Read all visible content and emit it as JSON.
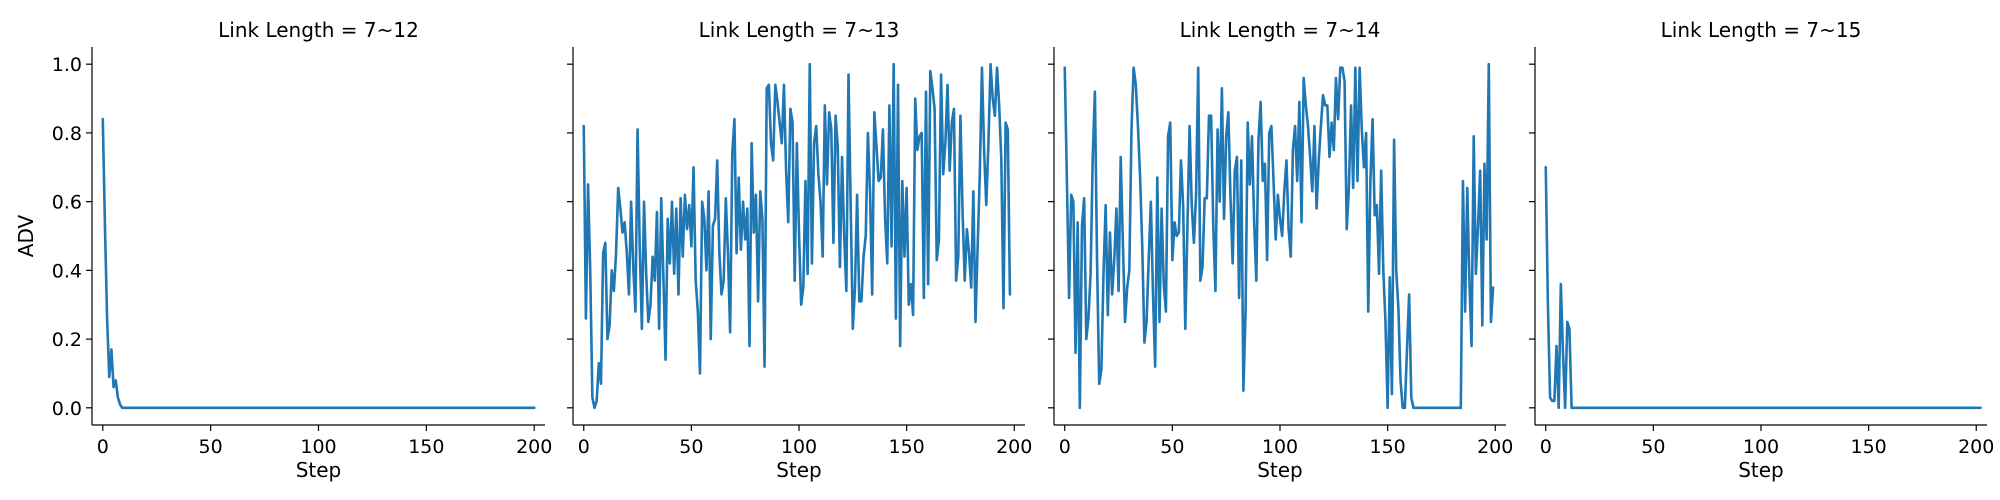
{
  "figure": {
    "line_color": "#1f77b4",
    "shared_ylabel": "ADV"
  },
  "chart_data": [
    {
      "type": "line",
      "title": "Link Length = 7~12",
      "xlabel": "Step",
      "ylabel": "ADV",
      "xlim": [
        -5,
        205
      ],
      "ylim": [
        -0.05,
        1.05
      ],
      "xticks": [
        0,
        50,
        100,
        150,
        200
      ],
      "yticks": [
        0.0,
        0.2,
        0.4,
        0.6,
        0.8,
        1.0
      ],
      "ytick_labels": [
        "0.0",
        "0.2",
        "0.4",
        "0.6",
        "0.8",
        "1.0"
      ],
      "grid": false,
      "series": [
        {
          "values": [
            0.84,
            0.53,
            0.26,
            0.09,
            0.17,
            0.06,
            0.08,
            0.03,
            0.01,
            0.0,
            0.0,
            0.0,
            0.0,
            0.0,
            0.0,
            0.0,
            0.0,
            0.0,
            0.0,
            0.0,
            0.0,
            0.0,
            0.0,
            0.0,
            0.0,
            0.0,
            0.0,
            0.0,
            0.0,
            0.0,
            0.0,
            0.0,
            0.0,
            0.0,
            0.0,
            0.0,
            0.0,
            0.0,
            0.0,
            0.0,
            0.0,
            0.0,
            0.0,
            0.0,
            0.0,
            0.0,
            0.0,
            0.0,
            0.0,
            0.0,
            0.0,
            0.0,
            0.0,
            0.0,
            0.0,
            0.0,
            0.0,
            0.0,
            0.0,
            0.0,
            0.0,
            0.0,
            0.0,
            0.0,
            0.0,
            0.0,
            0.0,
            0.0,
            0.0,
            0.0,
            0.0,
            0.0,
            0.0,
            0.0,
            0.0,
            0.0,
            0.0,
            0.0,
            0.0,
            0.0,
            0.0,
            0.0,
            0.0,
            0.0,
            0.0,
            0.0,
            0.0,
            0.0,
            0.0,
            0.0,
            0.0,
            0.0,
            0.0,
            0.0,
            0.0,
            0.0,
            0.0,
            0.0,
            0.0,
            0.0,
            0.0,
            0.0,
            0.0,
            0.0,
            0.0,
            0.0,
            0.0,
            0.0,
            0.0,
            0.0,
            0.0,
            0.0,
            0.0,
            0.0,
            0.0,
            0.0,
            0.0,
            0.0,
            0.0,
            0.0,
            0.0,
            0.0,
            0.0,
            0.0,
            0.0,
            0.0,
            0.0,
            0.0,
            0.0,
            0.0,
            0.0,
            0.0,
            0.0,
            0.0,
            0.0,
            0.0,
            0.0,
            0.0,
            0.0,
            0.0,
            0.0,
            0.0,
            0.0,
            0.0,
            0.0,
            0.0,
            0.0,
            0.0,
            0.0,
            0.0,
            0.0,
            0.0,
            0.0,
            0.0,
            0.0,
            0.0,
            0.0,
            0.0,
            0.0,
            0.0,
            0.0,
            0.0,
            0.0,
            0.0,
            0.0,
            0.0,
            0.0,
            0.0,
            0.0,
            0.0,
            0.0,
            0.0,
            0.0,
            0.0,
            0.0,
            0.0,
            0.0,
            0.0,
            0.0,
            0.0,
            0.0,
            0.0,
            0.0,
            0.0,
            0.0,
            0.0,
            0.0,
            0.0,
            0.0,
            0.0,
            0.0,
            0.0,
            0.0,
            0.0,
            0.0,
            0.0,
            0.0,
            0.0,
            0.0,
            0.0,
            0.0
          ]
        }
      ]
    },
    {
      "type": "line",
      "title": "Link Length = 7~13",
      "xlabel": "Step",
      "ylabel": "",
      "xlim": [
        -5,
        205
      ],
      "ylim": [
        -0.05,
        1.05
      ],
      "xticks": [
        0,
        50,
        100,
        150,
        200
      ],
      "yticks": [
        0.0,
        0.2,
        0.4,
        0.6,
        0.8,
        1.0
      ],
      "ytick_labels": [],
      "grid": false,
      "series": [
        {
          "values": [
            0.82,
            0.26,
            0.65,
            0.4,
            0.03,
            0.0,
            0.02,
            0.13,
            0.07,
            0.45,
            0.48,
            0.2,
            0.24,
            0.4,
            0.34,
            0.45,
            0.64,
            0.58,
            0.51,
            0.54,
            0.45,
            0.33,
            0.6,
            0.41,
            0.28,
            0.81,
            0.47,
            0.23,
            0.6,
            0.39,
            0.25,
            0.3,
            0.44,
            0.37,
            0.57,
            0.23,
            0.61,
            0.38,
            0.14,
            0.55,
            0.42,
            0.6,
            0.39,
            0.58,
            0.33,
            0.61,
            0.44,
            0.62,
            0.52,
            0.59,
            0.47,
            0.7,
            0.37,
            0.28,
            0.1,
            0.6,
            0.55,
            0.4,
            0.63,
            0.2,
            0.53,
            0.55,
            0.72,
            0.45,
            0.33,
            0.37,
            0.61,
            0.45,
            0.22,
            0.74,
            0.84,
            0.45,
            0.67,
            0.46,
            0.6,
            0.49,
            0.58,
            0.18,
            0.77,
            0.51,
            0.62,
            0.31,
            0.63,
            0.55,
            0.12,
            0.93,
            0.94,
            0.77,
            0.72,
            0.94,
            0.89,
            0.83,
            0.77,
            0.94,
            0.69,
            0.54,
            0.87,
            0.83,
            0.37,
            0.77,
            0.51,
            0.3,
            0.35,
            0.66,
            0.39,
            1.0,
            0.42,
            0.77,
            0.82,
            0.68,
            0.6,
            0.44,
            0.88,
            0.65,
            0.86,
            0.81,
            0.48,
            0.85,
            0.76,
            0.41,
            0.73,
            0.5,
            0.34,
            0.97,
            0.59,
            0.23,
            0.35,
            0.62,
            0.31,
            0.31,
            0.44,
            0.5,
            0.8,
            0.63,
            0.33,
            0.86,
            0.76,
            0.66,
            0.67,
            0.81,
            0.55,
            0.42,
            0.88,
            0.47,
            1.0,
            0.26,
            0.94,
            0.18,
            0.66,
            0.44,
            0.64,
            0.3,
            0.36,
            0.27,
            0.9,
            0.75,
            0.79,
            0.8,
            0.32,
            0.92,
            0.36,
            0.98,
            0.93,
            0.87,
            0.43,
            0.49,
            0.97,
            0.68,
            0.77,
            0.94,
            0.69,
            0.83,
            0.87,
            0.37,
            0.44,
            0.85,
            0.57,
            0.37,
            0.52,
            0.45,
            0.35,
            0.63,
            0.25,
            0.47,
            0.68,
            0.99,
            0.75,
            0.59,
            0.77,
            1.0,
            0.9,
            0.85,
            0.99,
            0.88,
            0.72,
            0.29,
            0.83,
            0.81,
            0.33
          ]
        }
      ]
    },
    {
      "type": "line",
      "title": "Link Length = 7~14",
      "xlabel": "Step",
      "ylabel": "",
      "xlim": [
        -5,
        205
      ],
      "ylim": [
        -0.05,
        1.05
      ],
      "xticks": [
        0,
        50,
        100,
        150,
        200
      ],
      "yticks": [
        0.0,
        0.2,
        0.4,
        0.6,
        0.8,
        1.0
      ],
      "ytick_labels": [],
      "grid": false,
      "series": [
        {
          "values": [
            0.99,
            0.66,
            0.32,
            0.62,
            0.6,
            0.16,
            0.54,
            0.0,
            0.53,
            0.61,
            0.2,
            0.26,
            0.39,
            0.73,
            0.92,
            0.43,
            0.07,
            0.11,
            0.39,
            0.59,
            0.27,
            0.51,
            0.33,
            0.43,
            0.58,
            0.34,
            0.73,
            0.48,
            0.25,
            0.35,
            0.4,
            0.81,
            0.99,
            0.94,
            0.82,
            0.67,
            0.47,
            0.19,
            0.25,
            0.43,
            0.6,
            0.33,
            0.12,
            0.67,
            0.25,
            0.58,
            0.36,
            0.28,
            0.79,
            0.83,
            0.43,
            0.54,
            0.5,
            0.51,
            0.72,
            0.59,
            0.23,
            0.53,
            0.82,
            0.59,
            0.48,
            0.62,
            0.99,
            0.37,
            0.41,
            0.61,
            0.61,
            0.85,
            0.85,
            0.53,
            0.34,
            0.81,
            0.6,
            0.93,
            0.55,
            0.79,
            0.86,
            0.61,
            0.42,
            0.69,
            0.73,
            0.32,
            0.72,
            0.05,
            0.28,
            0.83,
            0.65,
            0.79,
            0.54,
            0.37,
            0.78,
            0.89,
            0.66,
            0.71,
            0.43,
            0.8,
            0.82,
            0.66,
            0.49,
            0.62,
            0.55,
            0.5,
            0.63,
            0.72,
            0.52,
            0.44,
            0.75,
            0.82,
            0.66,
            0.89,
            0.54,
            0.96,
            0.88,
            0.82,
            0.73,
            0.63,
            0.82,
            0.58,
            0.72,
            0.82,
            0.91,
            0.88,
            0.88,
            0.73,
            0.83,
            0.75,
            0.96,
            0.84,
            0.99,
            0.99,
            0.95,
            0.52,
            0.64,
            0.88,
            0.64,
            0.99,
            0.66,
            0.99,
            0.81,
            0.7,
            0.8,
            0.28,
            0.66,
            0.84,
            0.56,
            0.59,
            0.39,
            0.69,
            0.4,
            0.25,
            0.0,
            0.38,
            0.04,
            0.78,
            0.4,
            0.29,
            0.08,
            0.0,
            0.0,
            0.17,
            0.33,
            0.03,
            0.0,
            0.0,
            0.0,
            0.0,
            0.0,
            0.0,
            0.0,
            0.0,
            0.0,
            0.0,
            0.0,
            0.0,
            0.0,
            0.0,
            0.0,
            0.0,
            0.0,
            0.0,
            0.0,
            0.0,
            0.0,
            0.0,
            0.0,
            0.66,
            0.28,
            0.64,
            0.37,
            0.18,
            0.79,
            0.39,
            0.53,
            0.69,
            0.24,
            0.71,
            0.49,
            1.0,
            0.25,
            0.35
          ]
        }
      ]
    },
    {
      "type": "line",
      "title": "Link Length = 7~15",
      "xlabel": "Step",
      "ylabel": "",
      "xlim": [
        -5,
        205
      ],
      "ylim": [
        -0.05,
        1.05
      ],
      "xticks": [
        0,
        50,
        100,
        150,
        200
      ],
      "yticks": [
        0.0,
        0.2,
        0.4,
        0.6,
        0.8,
        1.0
      ],
      "ytick_labels": [],
      "grid": false,
      "series": [
        {
          "values": [
            0.7,
            0.3,
            0.03,
            0.02,
            0.02,
            0.18,
            0.0,
            0.36,
            0.16,
            0.0,
            0.25,
            0.23,
            0.0,
            0.0,
            0.0,
            0.0,
            0.0,
            0.0,
            0.0,
            0.0,
            0.0,
            0.0,
            0.0,
            0.0,
            0.0,
            0.0,
            0.0,
            0.0,
            0.0,
            0.0,
            0.0,
            0.0,
            0.0,
            0.0,
            0.0,
            0.0,
            0.0,
            0.0,
            0.0,
            0.0,
            0.0,
            0.0,
            0.0,
            0.0,
            0.0,
            0.0,
            0.0,
            0.0,
            0.0,
            0.0,
            0.0,
            0.0,
            0.0,
            0.0,
            0.0,
            0.0,
            0.0,
            0.0,
            0.0,
            0.0,
            0.0,
            0.0,
            0.0,
            0.0,
            0.0,
            0.0,
            0.0,
            0.0,
            0.0,
            0.0,
            0.0,
            0.0,
            0.0,
            0.0,
            0.0,
            0.0,
            0.0,
            0.0,
            0.0,
            0.0,
            0.0,
            0.0,
            0.0,
            0.0,
            0.0,
            0.0,
            0.0,
            0.0,
            0.0,
            0.0,
            0.0,
            0.0,
            0.0,
            0.0,
            0.0,
            0.0,
            0.0,
            0.0,
            0.0,
            0.0,
            0.0,
            0.0,
            0.0,
            0.0,
            0.0,
            0.0,
            0.0,
            0.0,
            0.0,
            0.0,
            0.0,
            0.0,
            0.0,
            0.0,
            0.0,
            0.0,
            0.0,
            0.0,
            0.0,
            0.0,
            0.0,
            0.0,
            0.0,
            0.0,
            0.0,
            0.0,
            0.0,
            0.0,
            0.0,
            0.0,
            0.0,
            0.0,
            0.0,
            0.0,
            0.0,
            0.0,
            0.0,
            0.0,
            0.0,
            0.0,
            0.0,
            0.0,
            0.0,
            0.0,
            0.0,
            0.0,
            0.0,
            0.0,
            0.0,
            0.0,
            0.0,
            0.0,
            0.0,
            0.0,
            0.0,
            0.0,
            0.0,
            0.0,
            0.0,
            0.0,
            0.0,
            0.0,
            0.0,
            0.0,
            0.0,
            0.0,
            0.0,
            0.0,
            0.0,
            0.0,
            0.0,
            0.0,
            0.0,
            0.0,
            0.0,
            0.0,
            0.0,
            0.0,
            0.0,
            0.0,
            0.0,
            0.0,
            0.0,
            0.0,
            0.0,
            0.0,
            0.0,
            0.0,
            0.0,
            0.0,
            0.0,
            0.0,
            0.0,
            0.0,
            0.0,
            0.0,
            0.0,
            0.0,
            0.0,
            0.0,
            0.0,
            0.0,
            0.0
          ]
        }
      ]
    }
  ]
}
